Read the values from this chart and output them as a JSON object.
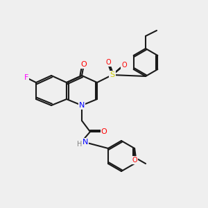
{
  "bg_color": "#efefef",
  "bond_color": "#1a1a1a",
  "bond_width": 1.5,
  "atom_colors": {
    "N": "#0000ff",
    "O": "#ff0000",
    "F": "#ff00ff",
    "S": "#cccc00",
    "C": "#1a1a1a",
    "H": "#808080"
  },
  "font_size": 8
}
